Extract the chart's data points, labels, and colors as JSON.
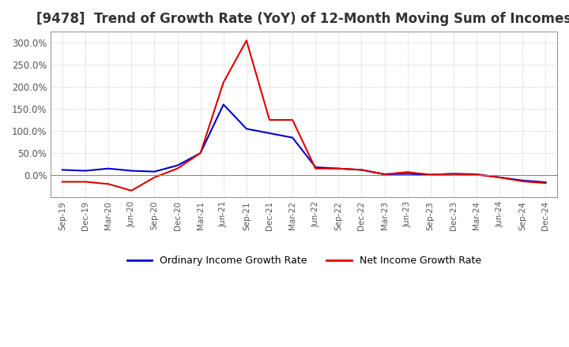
{
  "title": "[9478]  Trend of Growth Rate (YoY) of 12-Month Moving Sum of Incomes",
  "title_fontsize": 12,
  "ylim": [
    -50,
    325
  ],
  "yticks": [
    0,
    50,
    100,
    150,
    200,
    250,
    300
  ],
  "legend_labels": [
    "Ordinary Income Growth Rate",
    "Net Income Growth Rate"
  ],
  "x_labels": [
    "Sep-19",
    "Dec-19",
    "Mar-20",
    "Jun-20",
    "Sep-20",
    "Dec-20",
    "Mar-21",
    "Jun-21",
    "Sep-21",
    "Dec-21",
    "Mar-22",
    "Jun-22",
    "Sep-22",
    "Dec-22",
    "Mar-23",
    "Jun-23",
    "Sep-23",
    "Dec-23",
    "Mar-24",
    "Jun-24",
    "Sep-24",
    "Dec-24"
  ],
  "ordinary_income_growth": [
    12.0,
    10.0,
    15.0,
    10.0,
    8.0,
    22.0,
    50.0,
    160.0,
    105.0,
    95.0,
    85.0,
    18.0,
    15.0,
    12.0,
    2.0,
    3.0,
    1.0,
    3.0,
    2.0,
    -5.0,
    -12.0,
    -16.0
  ],
  "net_income_growth": [
    -15.0,
    -15.0,
    -20.0,
    -35.0,
    -5.0,
    15.0,
    50.0,
    210.0,
    305.0,
    125.0,
    125.0,
    15.0,
    15.0,
    12.0,
    2.0,
    7.0,
    1.0,
    3.0,
    1.0,
    -5.0,
    -14.0,
    -18.0
  ],
  "background_color": "#ffffff",
  "grid_color": "#aaaaaa",
  "ordinary_color": "#0000cc",
  "net_color": "#dd0000",
  "line_width": 1.5
}
